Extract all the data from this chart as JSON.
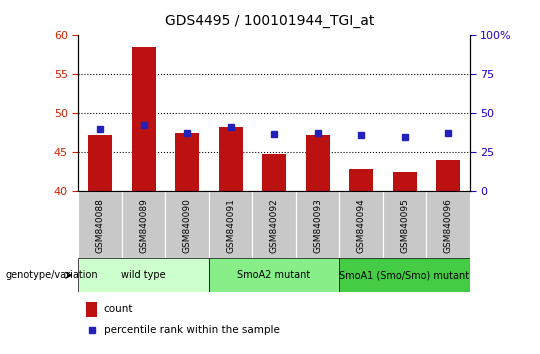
{
  "title": "GDS4495 / 100101944_TGI_at",
  "samples": [
    "GSM840088",
    "GSM840089",
    "GSM840090",
    "GSM840091",
    "GSM840092",
    "GSM840093",
    "GSM840094",
    "GSM840095",
    "GSM840096"
  ],
  "bar_values": [
    47.2,
    58.5,
    47.5,
    48.3,
    44.8,
    47.2,
    42.8,
    42.5,
    44.0
  ],
  "bar_bottom": 40,
  "percentile_values_left": [
    48.0,
    48.5,
    47.5,
    48.2,
    47.3,
    47.5,
    47.2,
    47.0,
    47.5
  ],
  "ylim_left": [
    40,
    60
  ],
  "ylim_right": [
    0,
    100
  ],
  "yticks_left": [
    40,
    45,
    50,
    55,
    60
  ],
  "yticks_right": [
    0,
    25,
    50,
    75,
    100
  ],
  "bar_color": "#BB1111",
  "percentile_color": "#2222BB",
  "bar_width": 0.55,
  "groups": [
    {
      "label": "wild type",
      "span": [
        0,
        3
      ],
      "color": "#ccffcc"
    },
    {
      "label": "SmoA2 mutant",
      "span": [
        3,
        6
      ],
      "color": "#88ee88"
    },
    {
      "label": "SmoA1 (Smo/Smo) mutant",
      "span": [
        6,
        9
      ],
      "color": "#44cc44"
    }
  ],
  "legend_count_label": "count",
  "legend_percentile_label": "percentile rank within the sample",
  "genotype_label": "genotype/variation",
  "left_tick_color": "#CC2200",
  "right_tick_color": "#2200CC",
  "grid_yticks": [
    45,
    50,
    55
  ],
  "sample_bg_color": "#c8c8c8",
  "sample_text_color": "#000000"
}
